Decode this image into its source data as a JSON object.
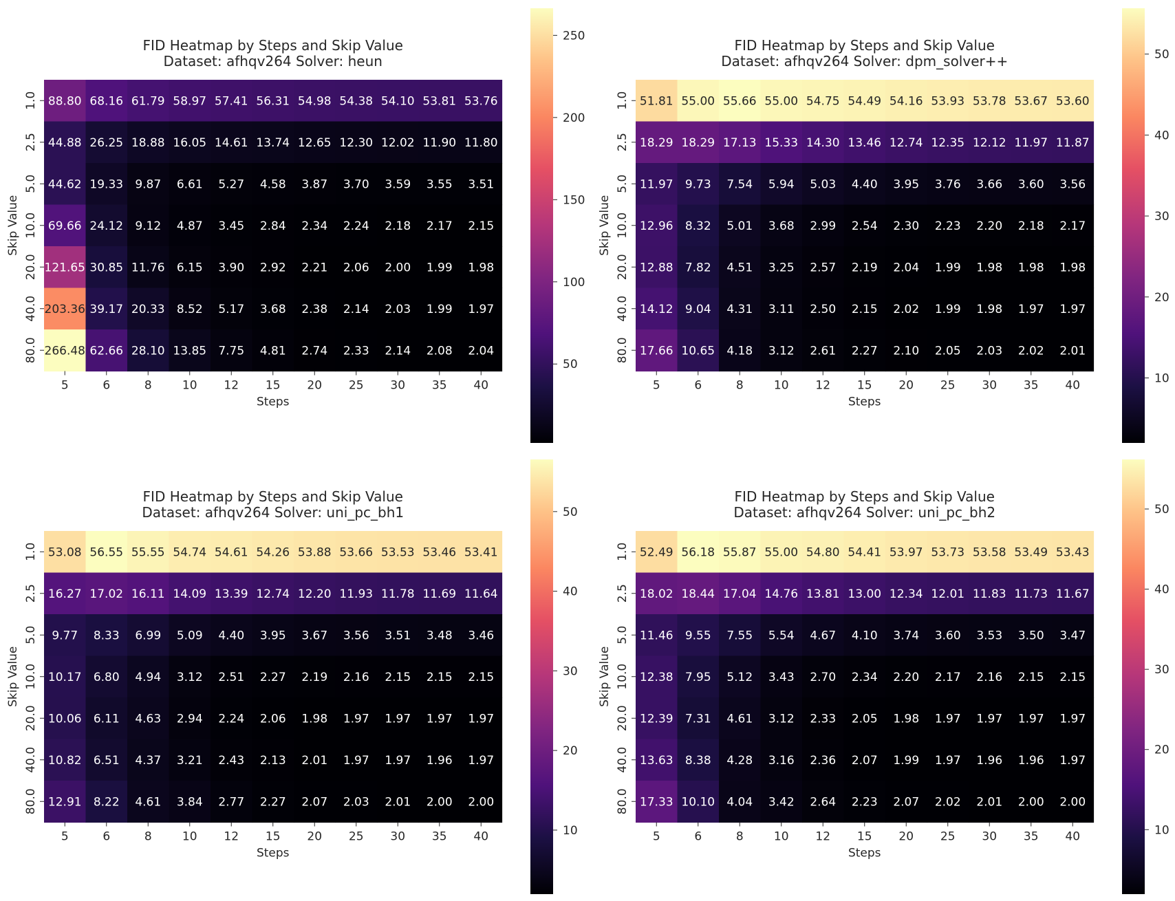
{
  "chart_data": [
    {
      "type": "heatmap",
      "title": "FID Heatmap by Steps and Skip Value",
      "subtitle": "Dataset: afhqv264 Solver: heun",
      "xlabel": "Steps",
      "ylabel": "Skip Value",
      "x_categories": [
        "5",
        "6",
        "8",
        "10",
        "12",
        "15",
        "20",
        "25",
        "30",
        "35",
        "40"
      ],
      "y_categories": [
        "1.0",
        "2.5",
        "5.0",
        "10.0",
        "20.0",
        "40.0",
        "80.0"
      ],
      "values": [
        [
          88.8,
          68.16,
          61.79,
          58.97,
          57.41,
          56.31,
          54.98,
          54.38,
          54.1,
          53.81,
          53.76
        ],
        [
          44.88,
          26.25,
          18.88,
          16.05,
          14.61,
          13.74,
          12.65,
          12.3,
          12.02,
          11.9,
          11.8
        ],
        [
          44.62,
          19.33,
          9.87,
          6.61,
          5.27,
          4.58,
          3.87,
          3.7,
          3.59,
          3.55,
          3.51
        ],
        [
          69.66,
          24.12,
          9.12,
          4.87,
          3.45,
          2.84,
          2.34,
          2.24,
          2.18,
          2.17,
          2.15
        ],
        [
          121.65,
          30.85,
          11.76,
          6.15,
          3.9,
          2.92,
          2.21,
          2.06,
          2.0,
          1.99,
          1.98
        ],
        [
          203.36,
          39.17,
          20.33,
          8.52,
          5.17,
          3.68,
          2.38,
          2.14,
          2.03,
          1.99,
          1.97
        ],
        [
          266.48,
          62.66,
          28.1,
          13.85,
          7.75,
          4.81,
          2.74,
          2.33,
          2.14,
          2.08,
          2.04
        ]
      ],
      "colormap": "magma",
      "color_range": [
        1.97,
        266.48
      ],
      "colorbar_ticks": [
        50,
        100,
        150,
        200,
        250
      ]
    },
    {
      "type": "heatmap",
      "title": "FID Heatmap by Steps and Skip Value",
      "subtitle": "Dataset: afhqv264 Solver: dpm_solver++",
      "xlabel": "Steps",
      "ylabel": "Skip Value",
      "x_categories": [
        "5",
        "6",
        "8",
        "10",
        "12",
        "15",
        "20",
        "25",
        "30",
        "35",
        "40"
      ],
      "y_categories": [
        "1.0",
        "2.5",
        "5.0",
        "10.0",
        "20.0",
        "40.0",
        "80.0"
      ],
      "values": [
        [
          51.81,
          55.0,
          55.66,
          55.0,
          54.75,
          54.49,
          54.16,
          53.93,
          53.78,
          53.67,
          53.6
        ],
        [
          18.29,
          18.29,
          17.13,
          15.33,
          14.3,
          13.46,
          12.74,
          12.35,
          12.12,
          11.97,
          11.87
        ],
        [
          11.97,
          9.73,
          7.54,
          5.94,
          5.03,
          4.4,
          3.95,
          3.76,
          3.66,
          3.6,
          3.56
        ],
        [
          12.96,
          8.32,
          5.01,
          3.68,
          2.99,
          2.54,
          2.3,
          2.23,
          2.2,
          2.18,
          2.17
        ],
        [
          12.88,
          7.82,
          4.51,
          3.25,
          2.57,
          2.19,
          2.04,
          1.99,
          1.98,
          1.98,
          1.98
        ],
        [
          14.12,
          9.04,
          4.31,
          3.11,
          2.5,
          2.15,
          2.02,
          1.99,
          1.98,
          1.97,
          1.97
        ],
        [
          17.66,
          10.65,
          4.18,
          3.12,
          2.61,
          2.27,
          2.1,
          2.05,
          2.03,
          2.02,
          2.01
        ]
      ],
      "colormap": "magma",
      "color_range": [
        1.97,
        55.66
      ],
      "colorbar_ticks": [
        10,
        20,
        30,
        40,
        50
      ]
    },
    {
      "type": "heatmap",
      "title": "FID Heatmap by Steps and Skip Value",
      "subtitle": "Dataset: afhqv264 Solver: uni_pc_bh1",
      "xlabel": "Steps",
      "ylabel": "Skip Value",
      "x_categories": [
        "5",
        "6",
        "8",
        "10",
        "12",
        "15",
        "20",
        "25",
        "30",
        "35",
        "40"
      ],
      "y_categories": [
        "1.0",
        "2.5",
        "5.0",
        "10.0",
        "20.0",
        "40.0",
        "80.0"
      ],
      "values": [
        [
          53.08,
          56.55,
          55.55,
          54.74,
          54.61,
          54.26,
          53.88,
          53.66,
          53.53,
          53.46,
          53.41
        ],
        [
          16.27,
          17.02,
          16.11,
          14.09,
          13.39,
          12.74,
          12.2,
          11.93,
          11.78,
          11.69,
          11.64
        ],
        [
          9.77,
          8.33,
          6.99,
          5.09,
          4.4,
          3.95,
          3.67,
          3.56,
          3.51,
          3.48,
          3.46
        ],
        [
          10.17,
          6.8,
          4.94,
          3.12,
          2.51,
          2.27,
          2.19,
          2.16,
          2.15,
          2.15,
          2.15
        ],
        [
          10.06,
          6.11,
          4.63,
          2.94,
          2.24,
          2.06,
          1.98,
          1.97,
          1.97,
          1.97,
          1.97
        ],
        [
          10.82,
          6.51,
          4.37,
          3.21,
          2.43,
          2.13,
          2.01,
          1.97,
          1.97,
          1.96,
          1.97
        ],
        [
          12.91,
          8.22,
          4.61,
          3.84,
          2.77,
          2.27,
          2.07,
          2.03,
          2.01,
          2.0,
          2.0
        ]
      ],
      "colormap": "magma",
      "color_range": [
        1.96,
        56.55
      ],
      "colorbar_ticks": [
        10,
        20,
        30,
        40,
        50
      ]
    },
    {
      "type": "heatmap",
      "title": "FID Heatmap by Steps and Skip Value",
      "subtitle": "Dataset: afhqv264 Solver: uni_pc_bh2",
      "xlabel": "Steps",
      "ylabel": "Skip Value",
      "x_categories": [
        "5",
        "6",
        "8",
        "10",
        "12",
        "15",
        "20",
        "25",
        "30",
        "35",
        "40"
      ],
      "y_categories": [
        "1.0",
        "2.5",
        "5.0",
        "10.0",
        "20.0",
        "40.0",
        "80.0"
      ],
      "values": [
        [
          52.49,
          56.18,
          55.87,
          55.0,
          54.8,
          54.41,
          53.97,
          53.73,
          53.58,
          53.49,
          53.43
        ],
        [
          18.02,
          18.44,
          17.04,
          14.76,
          13.81,
          13.0,
          12.34,
          12.01,
          11.83,
          11.73,
          11.67
        ],
        [
          11.46,
          9.55,
          7.55,
          5.54,
          4.67,
          4.1,
          3.74,
          3.6,
          3.53,
          3.5,
          3.47
        ],
        [
          12.38,
          7.95,
          5.12,
          3.43,
          2.7,
          2.34,
          2.2,
          2.17,
          2.16,
          2.15,
          2.15
        ],
        [
          12.39,
          7.31,
          4.61,
          3.12,
          2.33,
          2.05,
          1.98,
          1.97,
          1.97,
          1.97,
          1.97
        ],
        [
          13.63,
          8.38,
          4.28,
          3.16,
          2.36,
          2.07,
          1.99,
          1.97,
          1.96,
          1.96,
          1.97
        ],
        [
          17.33,
          10.1,
          4.04,
          3.42,
          2.64,
          2.23,
          2.07,
          2.02,
          2.01,
          2.0,
          2.0
        ]
      ],
      "colormap": "magma",
      "color_range": [
        1.96,
        56.18
      ],
      "colorbar_ticks": [
        10,
        20,
        30,
        40,
        50
      ]
    }
  ]
}
